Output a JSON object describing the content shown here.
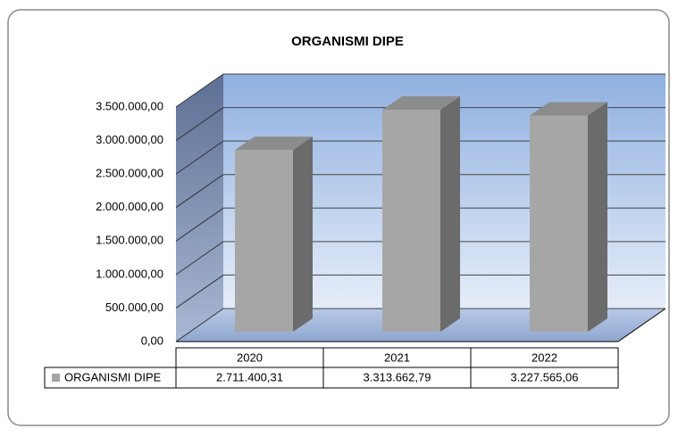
{
  "chart_data": {
    "type": "bar3d",
    "title": "ORGANISMI DIPE",
    "categories": [
      "2020",
      "2021",
      "2022"
    ],
    "series": [
      {
        "name": "ORGANISMI DIPE",
        "color": "#a6a6a6",
        "values": [
          2711400.31,
          3313662.79,
          3227565.06
        ],
        "value_labels": [
          "2.711.400,31",
          "3.313.662,79",
          "3.227.565,06"
        ]
      }
    ],
    "ylim": [
      0,
      3500000
    ],
    "yticks": [
      {
        "value": 0,
        "label": "0,00"
      },
      {
        "value": 500000,
        "label": "500.000,00"
      },
      {
        "value": 1000000,
        "label": "1.000.000,00"
      },
      {
        "value": 1500000,
        "label": "1.500.000,00"
      },
      {
        "value": 2000000,
        "label": "2.000.000,00"
      },
      {
        "value": 2500000,
        "label": "2.500.000,00"
      },
      {
        "value": 3000000,
        "label": "3.000.000,00"
      },
      {
        "value": 3500000,
        "label": "3.500.000,00"
      }
    ],
    "grid": true
  }
}
